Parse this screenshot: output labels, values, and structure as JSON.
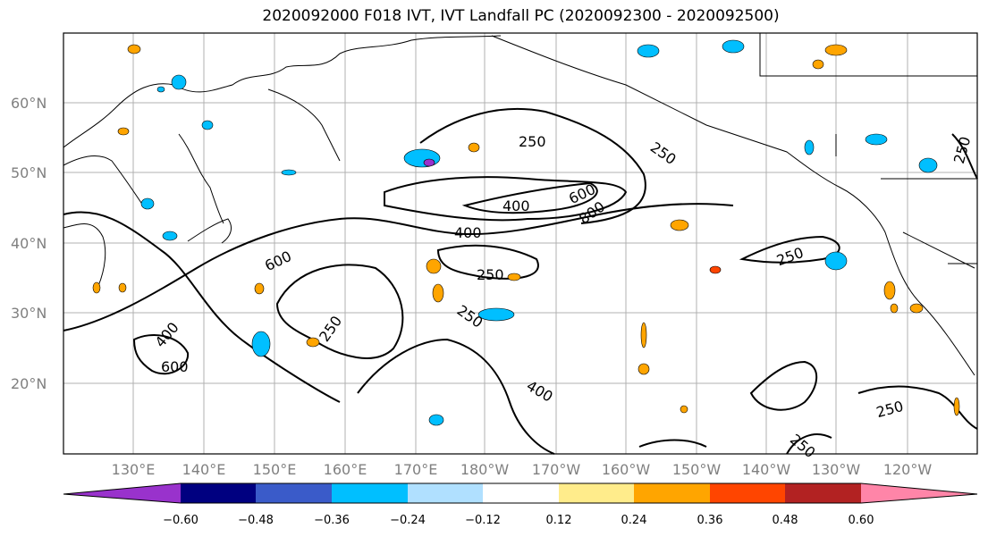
{
  "title": "2020092000 F018 IVT, IVT Landfall PC (2020092300 - 2020092500)",
  "lat_labels": [
    "60°N",
    "50°N",
    "40°N",
    "30°N",
    "20°N"
  ],
  "lon_labels": [
    "130°E",
    "140°E",
    "150°E",
    "160°E",
    "170°E",
    "180°W",
    "170°W",
    "160°W",
    "150°W",
    "140°W",
    "130°W",
    "120°W"
  ],
  "contour_labels": [
    "250",
    "250",
    "250",
    "250",
    "250",
    "250",
    "250",
    "250",
    "250",
    "400",
    "400",
    "400",
    "400",
    "600",
    "600",
    "600",
    "800"
  ],
  "colorbar": {
    "ticks": [
      "−0.60",
      "−0.48",
      "−0.36",
      "−0.24",
      "−0.12",
      "0.12",
      "0.24",
      "0.36",
      "0.48",
      "0.60"
    ],
    "colors": [
      "#9932cc",
      "#000080",
      "#3a5bc9",
      "#00bfff",
      "#b0e0ff",
      "#ffffff",
      "#ffec8b",
      "#ffa500",
      "#ff4500",
      "#b22222",
      "#ff85a8"
    ]
  }
}
